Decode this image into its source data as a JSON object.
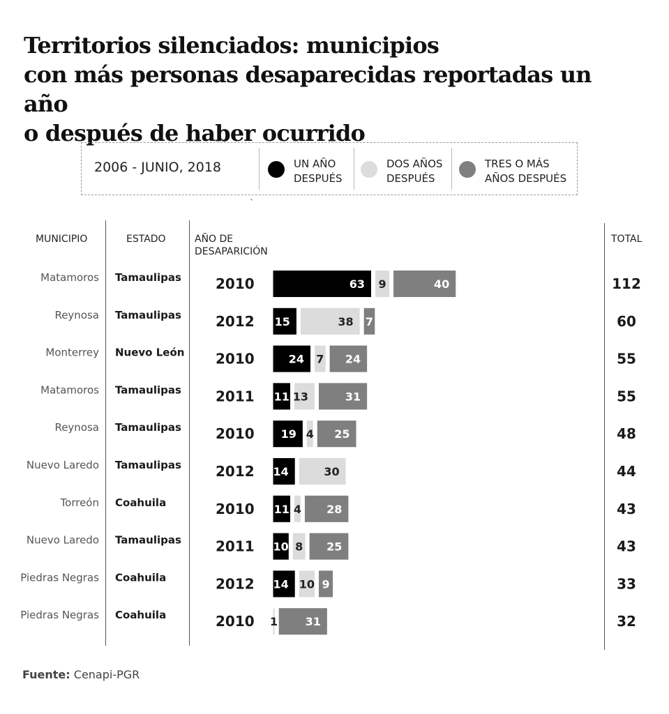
{
  "title_lines": [
    "Territorios silenciados: municipios",
    "con más personas desaparecidas reportadas un año",
    "o después de haber ocurrido"
  ],
  "legend": {
    "period": "2006 - JUNIO, 2018",
    "items": [
      {
        "line1": "UN AÑO",
        "line2": "DESPUÉS",
        "color": "#000000"
      },
      {
        "line1": "DOS AÑOS",
        "line2": "DESPUÉS",
        "color": "#dcdcdc"
      },
      {
        "line1": "TRES O MÁS",
        "line2": "AÑOS DESPUÉS",
        "color": "#7f7f7f"
      }
    ],
    "stray_mark": "`"
  },
  "headers": {
    "municipio": "MUNICIPIO",
    "estado": "ESTADO",
    "anio_line1": "AÑO DE",
    "anio_line2": "DESAPARICIÓN",
    "total": "TOTAL"
  },
  "chart_data": {
    "type": "bar",
    "orientation": "horizontal",
    "stacked": true,
    "title": "Territorios silenciados: municipios con más personas desaparecidas reportadas un año o después de haber ocurrido",
    "subtitle": "2006 - JUNIO, 2018",
    "legend_position": "top",
    "grid": false,
    "series": [
      {
        "name": "UN AÑO DESPUÉS",
        "color": "#000000",
        "label_color": "#ffffff",
        "values": [
          63,
          15,
          24,
          11,
          19,
          14,
          11,
          10,
          14,
          0
        ]
      },
      {
        "name": "DOS AÑOS DESPUÉS",
        "color": "#dcdcdc",
        "label_color": "#222222",
        "values": [
          9,
          38,
          7,
          13,
          4,
          30,
          4,
          8,
          10,
          1
        ]
      },
      {
        "name": "TRES O MÁS AÑOS DESPUÉS",
        "color": "#7f7f7f",
        "label_color": "#ffffff",
        "values": [
          40,
          7,
          24,
          31,
          25,
          0,
          28,
          25,
          9,
          31
        ]
      }
    ],
    "rows": [
      {
        "municipio": "Matamoros",
        "estado": "Tamaulipas",
        "anio": "2010",
        "total": "112"
      },
      {
        "municipio": "Reynosa",
        "estado": "Tamaulipas",
        "anio": "2012",
        "total": "60"
      },
      {
        "municipio": "Monterrey",
        "estado": "Nuevo León",
        "anio": "2010",
        "total": "55"
      },
      {
        "municipio": "Matamoros",
        "estado": "Tamaulipas",
        "anio": "2011",
        "total": "55"
      },
      {
        "municipio": "Reynosa",
        "estado": "Tamaulipas",
        "anio": "2010",
        "total": "48"
      },
      {
        "municipio": "Nuevo Laredo",
        "estado": "Tamaulipas",
        "anio": "2012",
        "total": "44"
      },
      {
        "municipio": "Torreón",
        "estado": "Coahuila",
        "anio": "2010",
        "total": "43"
      },
      {
        "municipio": "Nuevo Laredo",
        "estado": "Tamaulipas",
        "anio": "2011",
        "total": "43"
      },
      {
        "municipio": "Piedras Negras",
        "estado": "Coahuila",
        "anio": "2012",
        "total": "33"
      },
      {
        "municipio": "Piedras Negras",
        "estado": "Coahuila",
        "anio": "2010",
        "total": "32"
      }
    ]
  },
  "source": {
    "label": "Fuente:",
    "text": "Cenapi-PGR"
  }
}
